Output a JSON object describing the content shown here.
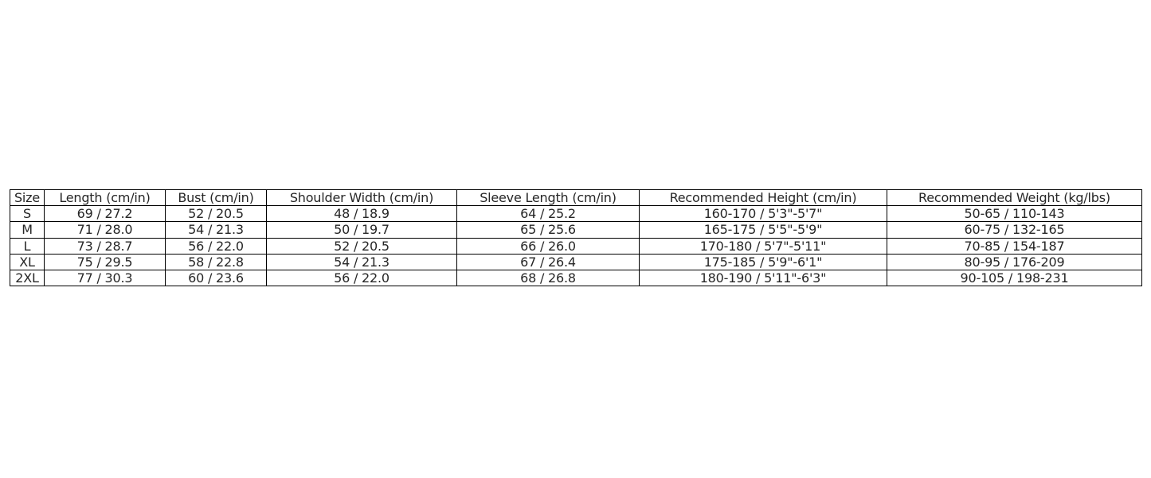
{
  "table": {
    "headers": [
      "Size",
      "Length (cm/in)",
      "Bust (cm/in)",
      "Shoulder Width (cm/in)",
      "Sleeve Length (cm/in)",
      "Recommended Height (cm/in)",
      "Recommended Weight (kg/lbs)"
    ],
    "rows": [
      [
        "S",
        "69 / 27.2",
        "52 / 20.5",
        "48 / 18.9",
        "64 / 25.2",
        "160-170 / 5'3\"-5'7\"",
        "50-65 / 110-143"
      ],
      [
        "M",
        "71 / 28.0",
        "54 / 21.3",
        "50 / 19.7",
        "65 / 25.6",
        "165-175 / 5'5\"-5'9\"",
        "60-75 / 132-165"
      ],
      [
        "L",
        "73 / 28.7",
        "56 / 22.0",
        "52 / 20.5",
        "66 / 26.0",
        "170-180 / 5'7\"-5'11\"",
        "70-85 / 154-187"
      ],
      [
        "XL",
        "75 / 29.5",
        "58 / 22.8",
        "54 / 21.3",
        "67 / 26.4",
        "175-185 / 5'9\"-6'1\"",
        "80-95 / 176-209"
      ],
      [
        "2XL",
        "77 / 30.3",
        "60 / 23.6",
        "56 / 22.0",
        "68 / 26.8",
        "180-190 / 5'11\"-6'3\"",
        "90-105 / 198-231"
      ]
    ]
  }
}
